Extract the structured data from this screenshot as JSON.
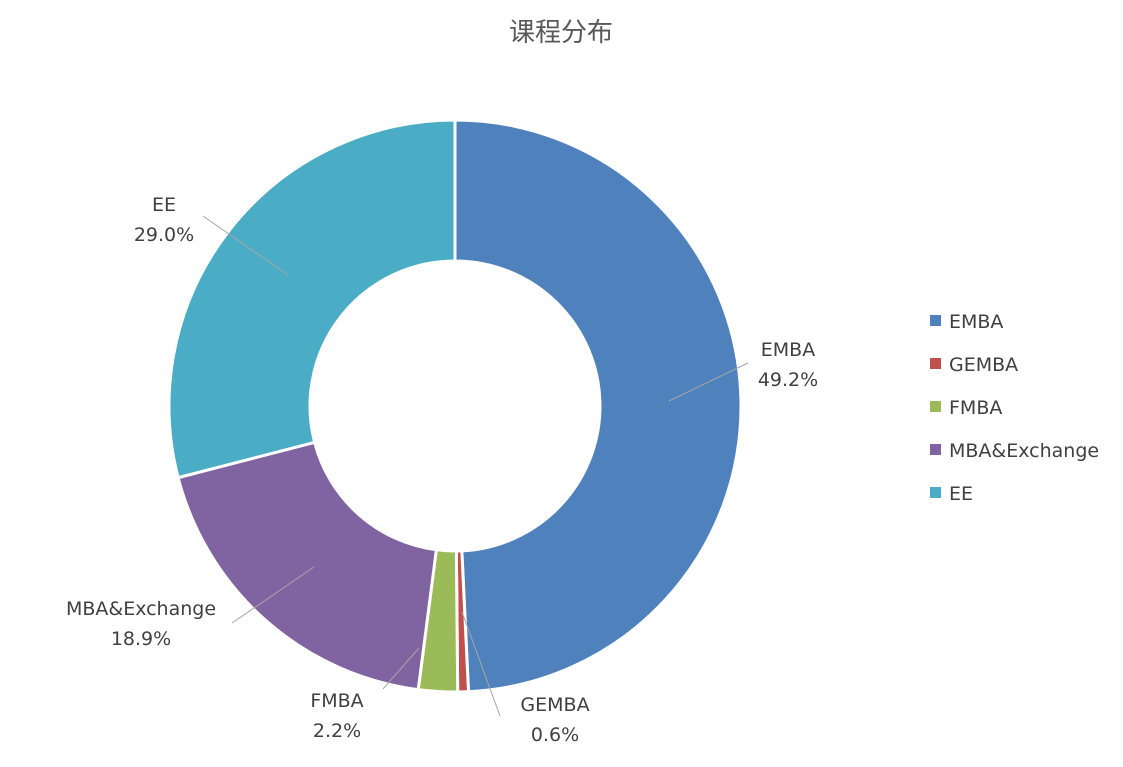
{
  "chart_data": {
    "type": "pie",
    "style": "donut",
    "title": "课程分布",
    "categories": [
      "EMBA",
      "GEMBA",
      "FMBA",
      "MBA&Exchange",
      "EE"
    ],
    "values": [
      49.2,
      0.6,
      2.2,
      18.9,
      29.0
    ],
    "value_labels": [
      "49.2%",
      "0.6%",
      "2.2%",
      "18.9%",
      "29.0%"
    ],
    "colors": [
      "#4F81BD",
      "#C0504D",
      "#9BBB59",
      "#8064A2",
      "#4BACC6"
    ],
    "legend": {
      "placement": "right",
      "entries": [
        "EMBA",
        "GEMBA",
        "FMBA",
        "MBA&Exchange",
        "EE"
      ]
    }
  }
}
